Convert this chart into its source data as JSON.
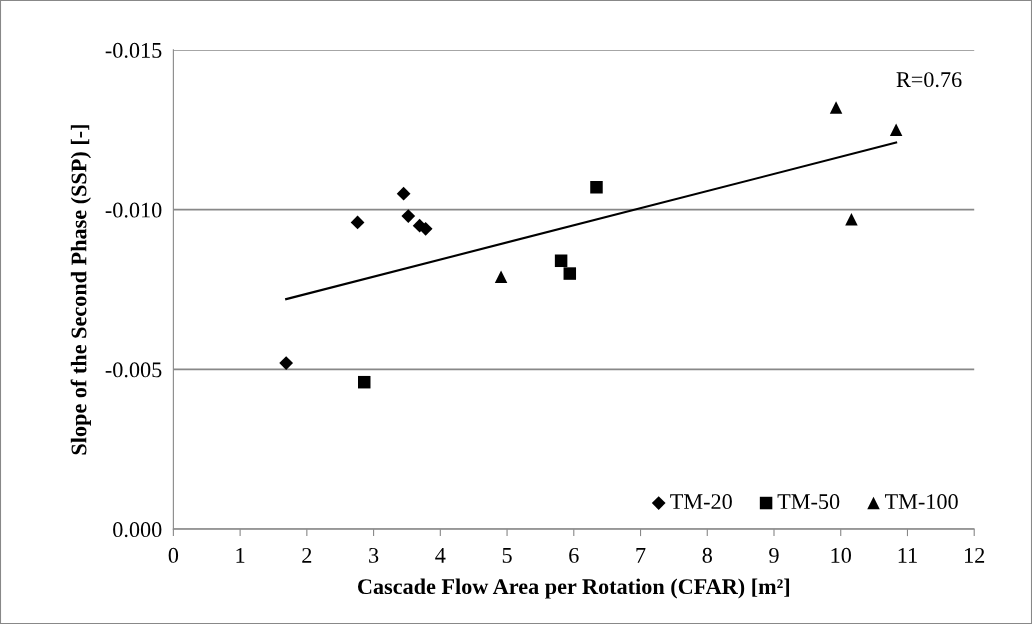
{
  "chart_data": {
    "type": "scatter",
    "xlabel": "Cascade Flow Area per Rotation (CFAR) [m²]",
    "ylabel": "Slope of the Second Phase (SSP) [-]",
    "annotations": [
      "R=0.76"
    ],
    "xlim": [
      0,
      12
    ],
    "xticks": [
      0,
      1,
      2,
      3,
      4,
      5,
      6,
      7,
      8,
      9,
      10,
      11,
      12
    ],
    "ylim": [
      0,
      -0.015
    ],
    "yticks": [
      {
        "value": 0,
        "label": "0.000"
      },
      {
        "value": -0.005,
        "label": "-0.005"
      },
      {
        "value": -0.01,
        "label": "-0.010"
      },
      {
        "value": -0.015,
        "label": "-0.015"
      }
    ],
    "grid": "y",
    "legend": "bottom right",
    "series": [
      {
        "name": "TM-20",
        "color": "#000000",
        "marker": "diamond",
        "x": [
          1.69,
          2.76,
          3.45,
          3.52,
          3.69,
          3.78
        ],
        "values": [
          -0.0052,
          -0.0096,
          -0.0105,
          -0.0098,
          -0.0095,
          -0.0094
        ]
      },
      {
        "name": "TM-50",
        "color": "#000000",
        "marker": "square",
        "x": [
          2.86,
          5.81,
          5.94,
          6.34
        ],
        "values": [
          -0.0046,
          -0.0084,
          -0.008,
          -0.0107
        ]
      },
      {
        "name": "TM-100",
        "color": "#000000",
        "marker": "triangle",
        "x": [
          4.91,
          9.93,
          10.16,
          10.83
        ],
        "values": [
          -0.0079,
          -0.0132,
          -0.0097,
          -0.0125
        ]
      },
      {
        "type": "line",
        "color": "#000000",
        "marker": "none",
        "line_style": "solid",
        "x": [
          1.69,
          10.83
        ],
        "values": [
          -0.0072,
          -0.0121
        ]
      }
    ]
  }
}
